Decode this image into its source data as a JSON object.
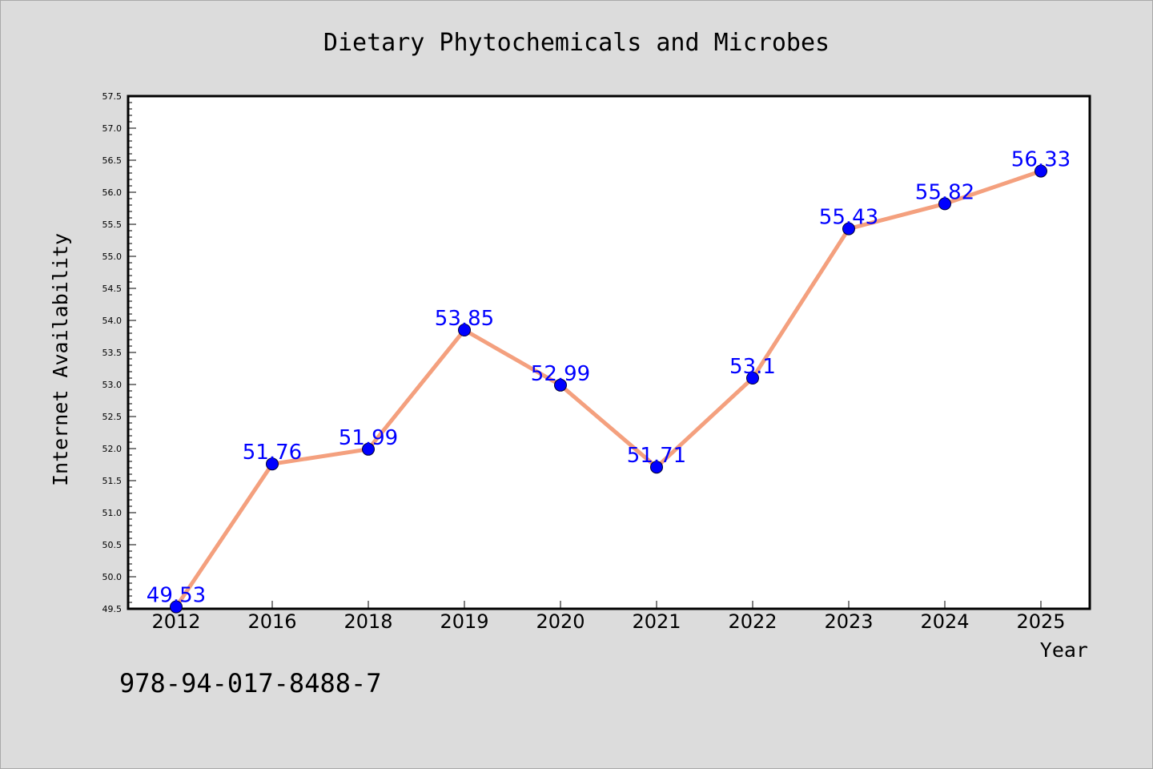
{
  "chart_data": {
    "type": "line",
    "title": "Dietary Phytochemicals and Microbes",
    "xlabel": "Year",
    "ylabel": "Internet Availability",
    "categories": [
      "2012",
      "2016",
      "2018",
      "2019",
      "2020",
      "2021",
      "2022",
      "2023",
      "2024",
      "2025"
    ],
    "series": [
      {
        "values": [
          49.53,
          51.76,
          51.99,
          53.85,
          52.99,
          51.71,
          53.1,
          55.43,
          55.82,
          56.33
        ],
        "labels": [
          "49.53",
          "51.76",
          "51.99",
          "53.85",
          "52.99",
          "51.71",
          "53.1",
          "55.43",
          "55.82",
          "56.33"
        ]
      }
    ],
    "ylim": [
      49.5,
      57.5
    ],
    "yticks": [
      "49.5",
      "50.0",
      "50.5",
      "51.0",
      "51.5",
      "52.0",
      "52.5",
      "53.0",
      "53.5",
      "54.0",
      "54.5",
      "55.0",
      "55.5",
      "56.0",
      "56.5",
      "57.0",
      "57.5"
    ],
    "grid": false,
    "line_color": "#f4a07e",
    "marker_color": "#0000ff",
    "label_color": "#0000ff"
  },
  "footer": {
    "isbn": "978-94-017-8488-7"
  }
}
